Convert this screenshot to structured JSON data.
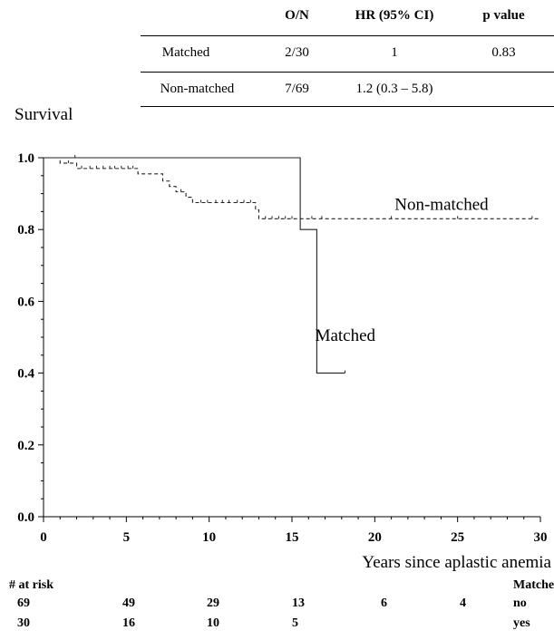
{
  "table": {
    "headers": [
      "",
      "O/N",
      "HR (95% CI)",
      "p value"
    ],
    "rows": [
      [
        "Matched",
        "2/30",
        "1",
        "0.83"
      ],
      [
        "Non-matched",
        "7/69",
        "1.2 (0.3 – 5.8)",
        ""
      ]
    ]
  },
  "chart_data": {
    "type": "line",
    "title": "",
    "ylabel": "Survival",
    "xlabel": "Years since aplastic anemia",
    "xlim": [
      0,
      30
    ],
    "ylim": [
      0.0,
      1.0
    ],
    "x_ticks": [
      "0",
      "5",
      "10",
      "15",
      "20",
      "25",
      "30"
    ],
    "y_ticks": [
      "0.0",
      "0.2",
      "0.4",
      "0.6",
      "0.8",
      "1.0"
    ],
    "series": [
      {
        "name": "Matched",
        "style": "solid",
        "steps": [
          [
            0,
            1.0
          ],
          [
            15.5,
            0.8
          ],
          [
            16.5,
            0.4
          ],
          [
            18.2,
            0.4
          ]
        ],
        "censor_x": [
          1.9,
          16.5,
          18.2
        ]
      },
      {
        "name": "Non-matched",
        "style": "dashed",
        "steps": [
          [
            0,
            1.0
          ],
          [
            1.0,
            0.985
          ],
          [
            2.0,
            0.97
          ],
          [
            5.7,
            0.955
          ],
          [
            7.2,
            0.935
          ],
          [
            7.6,
            0.92
          ],
          [
            8.0,
            0.905
          ],
          [
            8.6,
            0.89
          ],
          [
            9.0,
            0.875
          ],
          [
            12.8,
            0.855
          ],
          [
            13.0,
            0.83
          ],
          [
            30.0,
            0.83
          ]
        ],
        "censor_x": [
          1.5,
          2.3,
          2.8,
          3.2,
          3.6,
          4.0,
          4.3,
          4.7,
          5.1,
          5.4,
          8.3,
          9.5,
          9.9,
          10.4,
          10.8,
          11.2,
          11.7,
          12.1,
          12.5,
          13.4,
          13.8,
          14.2,
          14.6,
          15.0,
          16.2,
          16.8,
          21.0,
          25.0,
          29.5
        ]
      }
    ],
    "annotations": [
      "Non-matched",
      "Matched"
    ]
  },
  "risk_table": {
    "header": "# at risk",
    "group_header": "Matched",
    "rows": [
      {
        "counts": [
          "69",
          "49",
          "29",
          "13",
          "6",
          "4"
        ],
        "group": "no"
      },
      {
        "counts": [
          "30",
          "16",
          "10",
          "5"
        ],
        "group": "yes"
      }
    ]
  }
}
